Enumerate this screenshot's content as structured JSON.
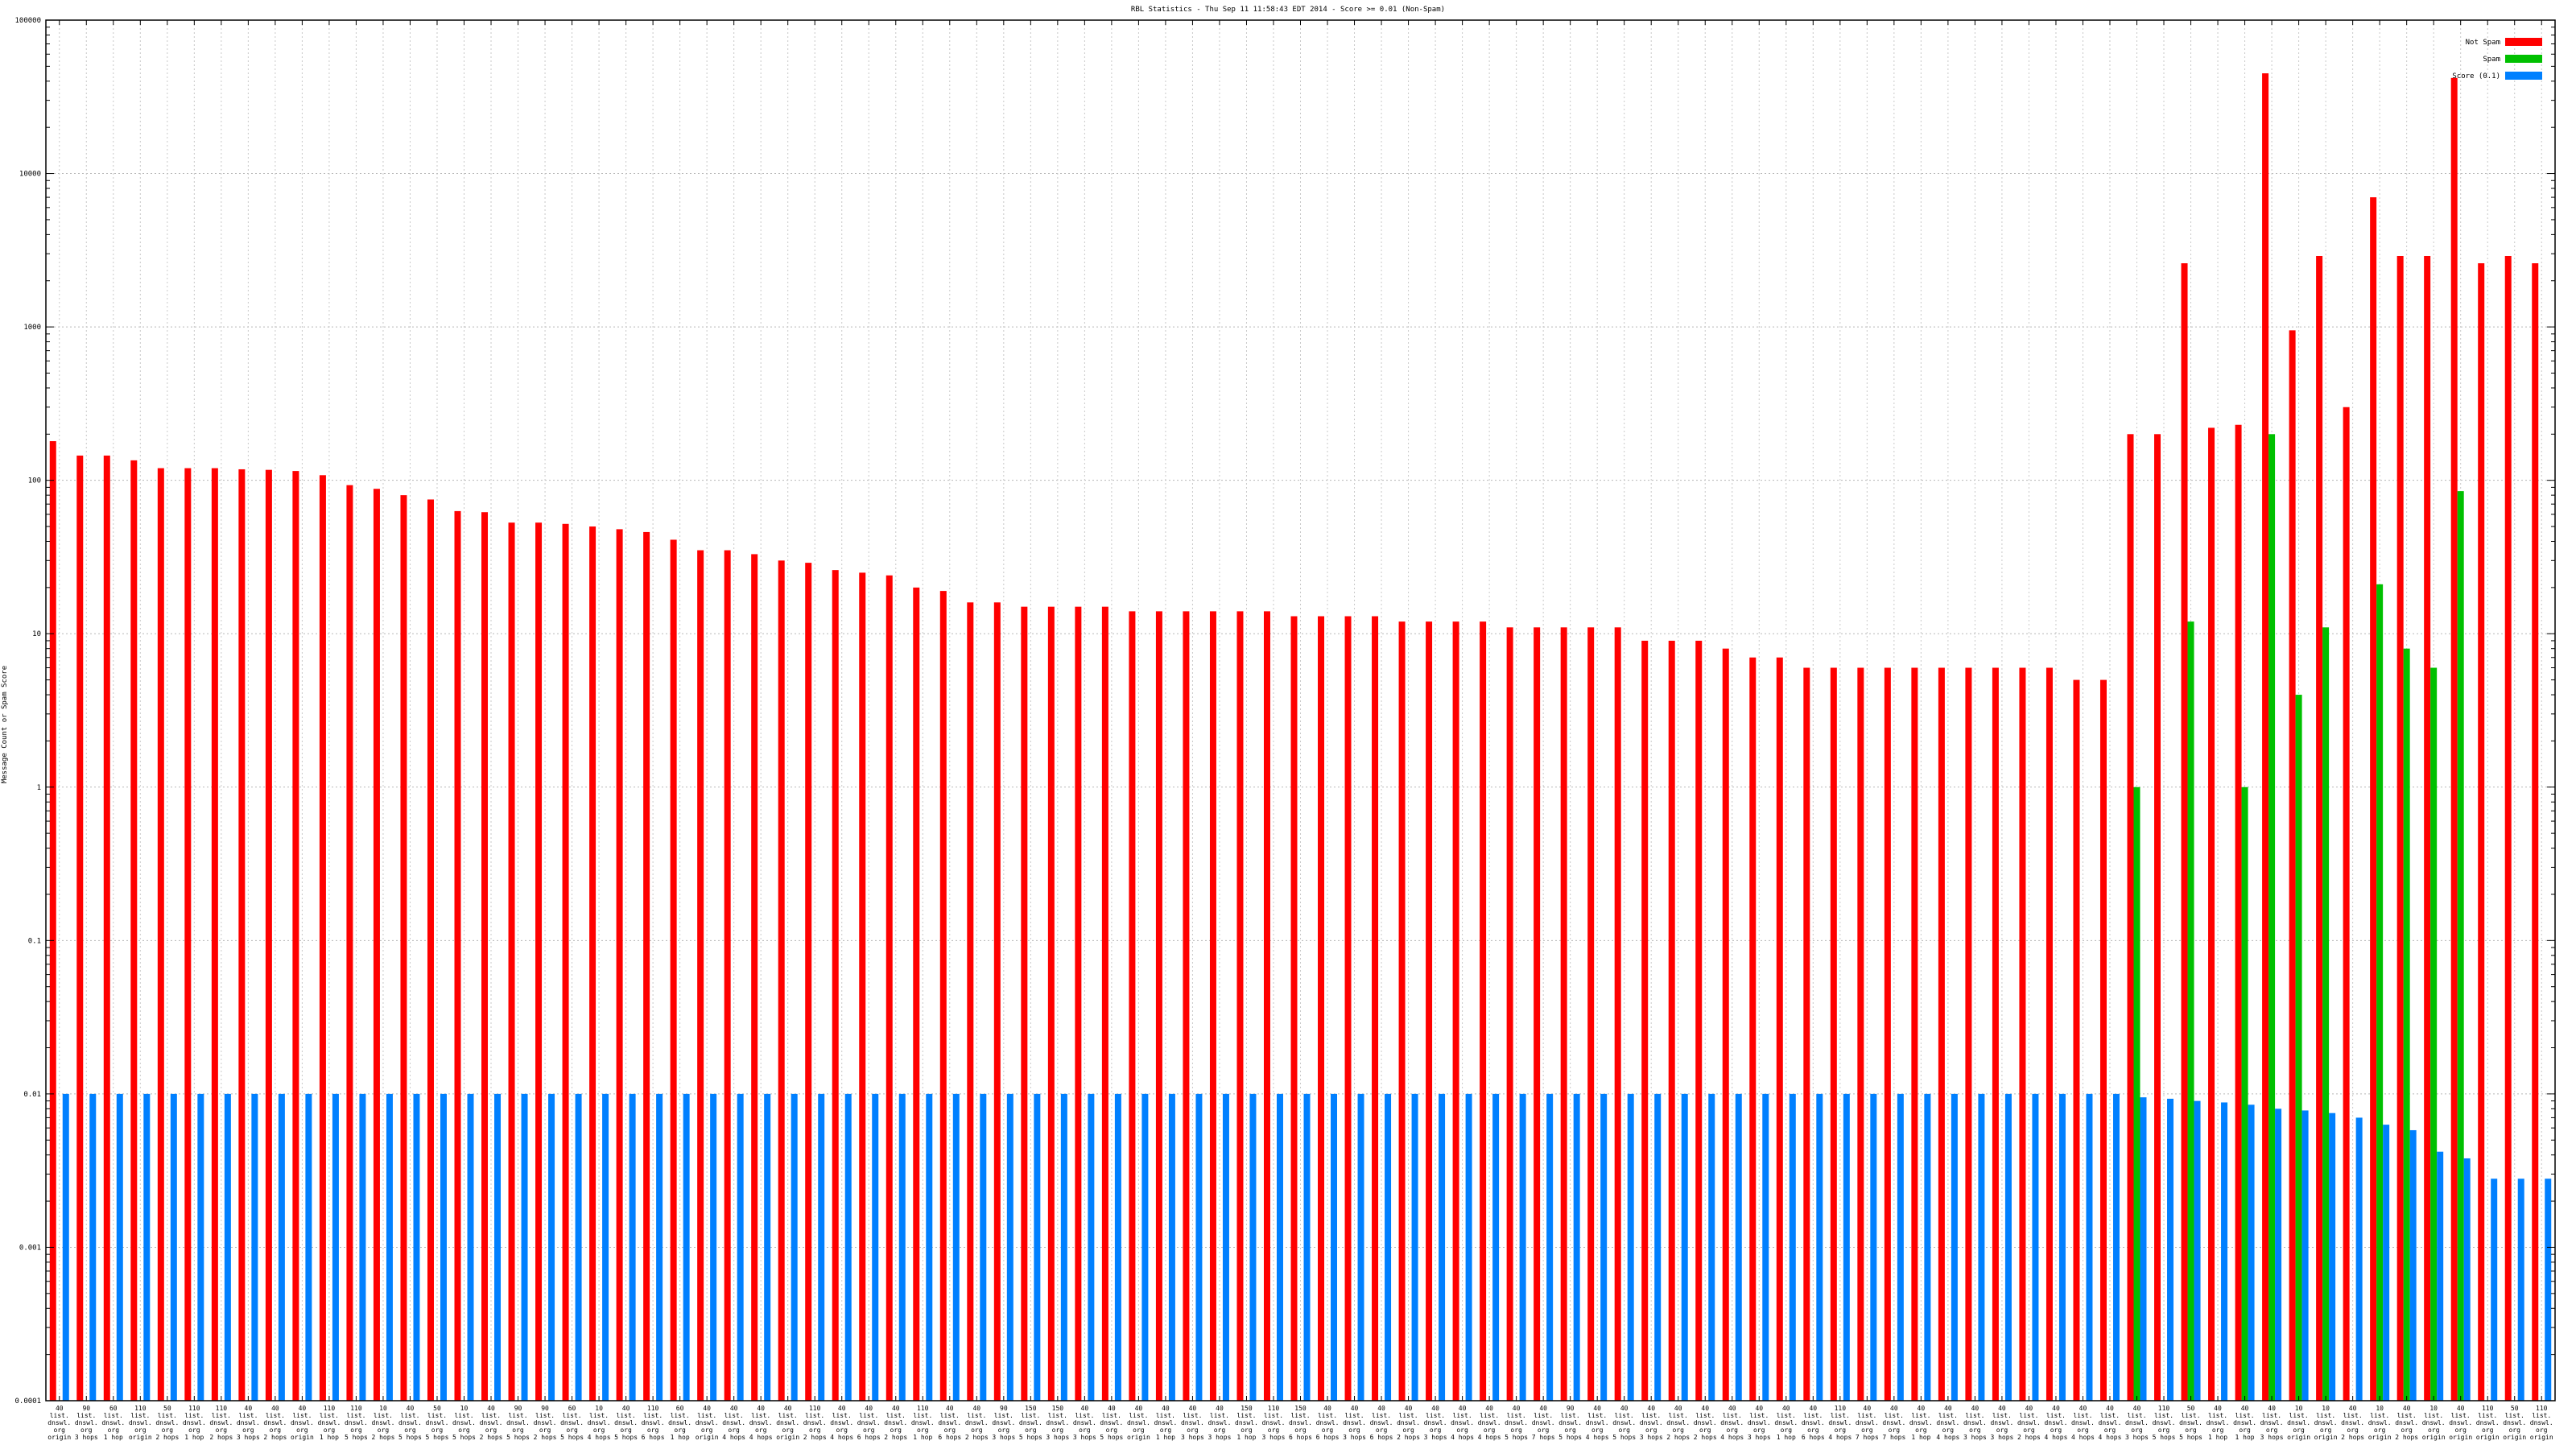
{
  "chart_data": {
    "type": "bar",
    "title": "RBL Statistics - Thu Sep 11 11:58:43 EDT 2014 - Score >= 0.01 (Non-Spam)",
    "ylabel": "Message Count or Spam Score",
    "yscale": "log",
    "ylim": [
      0.0001,
      100000
    ],
    "yticks": [
      "0.0001",
      "0.001",
      "0.01",
      "0.1",
      "1",
      "10",
      "100",
      "1000",
      "10000",
      "100000"
    ],
    "grid": true,
    "legend_position": "top-right",
    "series": [
      {
        "name": "Not Spam",
        "color": "#ff0000"
      },
      {
        "name": "Spam",
        "color": "#00c000"
      },
      {
        "name": "Score (0.1)",
        "color": "#0080ff"
      }
    ],
    "categories": [
      "c1",
      "c2",
      "c3",
      "c4",
      "c5",
      "c6",
      "c7",
      "c8",
      "c9",
      "c10",
      "c11",
      "c12",
      "c13",
      "c14",
      "c15",
      "c16",
      "c17",
      "c18",
      "c19",
      "c20",
      "c21",
      "c22",
      "c23",
      "c24",
      "c25",
      "c26",
      "c27",
      "c28",
      "c29",
      "c30",
      "c31",
      "c32",
      "c33",
      "c34",
      "c35",
      "c36",
      "c37",
      "c38",
      "c39",
      "c40",
      "c41",
      "c42",
      "c43",
      "c44",
      "c45",
      "c46",
      "c47",
      "c48",
      "c49",
      "c50",
      "c51",
      "c52",
      "c53",
      "c54",
      "c55",
      "c56",
      "c57",
      "c58",
      "c59",
      "c60",
      "c61",
      "c62",
      "c63",
      "c64",
      "c65",
      "c66",
      "c67",
      "c68",
      "c69",
      "c70",
      "c71",
      "c72",
      "c73",
      "c74",
      "c75",
      "c76",
      "c77",
      "c78",
      "c79",
      "c80",
      "c81",
      "c82",
      "c83",
      "c84",
      "c85",
      "c86",
      "c87",
      "c88",
      "c89",
      "c90",
      "c91",
      "c92",
      "c93"
    ],
    "category_labels": [
      [
        "40",
        "list.",
        "dnswl.",
        "org",
        "origin"
      ],
      [
        "90",
        "list.",
        "dnswl.",
        "org",
        "3 hops"
      ],
      [
        "60",
        "list.",
        "dnswl.",
        "org",
        "1 hop"
      ],
      [
        "110",
        "list.",
        "dnswl.",
        "org",
        "origin"
      ],
      [
        "50",
        "list.",
        "dnswl.",
        "org",
        "2 hops"
      ],
      [
        "110",
        "list.",
        "dnswl.",
        "org",
        "1 hop"
      ],
      [
        "110",
        "list.",
        "dnswl.",
        "org",
        "2 hops"
      ],
      [
        "40",
        "list.",
        "dnswl.",
        "org",
        "3 hops"
      ],
      [
        "40",
        "list.",
        "dnswl.",
        "org",
        "2 hops"
      ],
      [
        "40",
        "list.",
        "dnswl.",
        "org",
        "origin"
      ],
      [
        "110",
        "list.",
        "dnswl.",
        "org",
        "1 hop"
      ],
      [
        "110",
        "list.",
        "dnswl.",
        "org",
        "5 hops"
      ],
      [
        "10",
        "list.",
        "dnswl.",
        "org",
        "2 hops"
      ],
      [
        "40",
        "list.",
        "dnswl.",
        "org",
        "5 hops"
      ],
      [
        "50",
        "list.",
        "dnswl.",
        "org",
        "5 hops"
      ],
      [
        "10",
        "list.",
        "dnswl.",
        "org",
        "5 hops"
      ],
      [
        "40",
        "list.",
        "dnswl.",
        "org",
        "2 hops"
      ],
      [
        "90",
        "list.",
        "dnswl.",
        "org",
        "5 hops"
      ],
      [
        "90",
        "list.",
        "dnswl.",
        "org",
        "2 hops"
      ],
      [
        "60",
        "list.",
        "dnswl.",
        "org",
        "5 hops"
      ],
      [
        "10",
        "list.",
        "dnswl.",
        "org",
        "4 hops"
      ],
      [
        "40",
        "list.",
        "dnswl.",
        "org",
        "5 hops"
      ],
      [
        "110",
        "list.",
        "dnswl.",
        "org",
        "6 hops"
      ],
      [
        "60",
        "list.",
        "dnswl.",
        "org",
        "1 hop"
      ],
      [
        "40",
        "list.",
        "dnswl.",
        "org",
        "origin"
      ],
      [
        "40",
        "list.",
        "dnswl.",
        "org",
        "4 hops"
      ],
      [
        "40",
        "list.",
        "dnswl.",
        "org",
        "4 hops"
      ],
      [
        "40",
        "list.",
        "dnswl.",
        "org",
        "origin"
      ],
      [
        "110",
        "list.",
        "dnswl.",
        "org",
        "2 hops"
      ],
      [
        "40",
        "list.",
        "dnswl.",
        "org",
        "4 hops"
      ],
      [
        "40",
        "list.",
        "dnswl.",
        "org",
        "6 hops"
      ],
      [
        "40",
        "list.",
        "dnswl.",
        "org",
        "2 hops"
      ],
      [
        "110",
        "list.",
        "dnswl.",
        "org",
        "1 hop"
      ],
      [
        "40",
        "list.",
        "dnswl.",
        "org",
        "6 hops"
      ],
      [
        "40",
        "list.",
        "dnswl.",
        "org",
        "2 hops"
      ],
      [
        "90",
        "list.",
        "dnswl.",
        "org",
        "3 hops"
      ],
      [
        "150",
        "list.",
        "dnswl.",
        "org",
        "5 hops"
      ],
      [
        "150",
        "list.",
        "dnswl.",
        "org",
        "3 hops"
      ],
      [
        "40",
        "list.",
        "dnswl.",
        "org",
        "3 hops"
      ],
      [
        "40",
        "list.",
        "dnswl.",
        "org",
        "5 hops"
      ],
      [
        "40",
        "list.",
        "dnswl.",
        "org",
        "origin"
      ],
      [
        "40",
        "list.",
        "dnswl.",
        "org",
        "1 hop"
      ],
      [
        "40",
        "list.",
        "dnswl.",
        "org",
        "3 hops"
      ],
      [
        "40",
        "list.",
        "dnswl.",
        "org",
        "3 hops"
      ],
      [
        "150",
        "list.",
        "dnswl.",
        "org",
        "1 hop"
      ],
      [
        "110",
        "list.",
        "dnswl.",
        "org",
        "3 hops"
      ],
      [
        "150",
        "list.",
        "dnswl.",
        "org",
        "6 hops"
      ],
      [
        "40",
        "list.",
        "dnswl.",
        "org",
        "6 hops"
      ],
      [
        "40",
        "list.",
        "dnswl.",
        "org",
        "3 hops"
      ],
      [
        "40",
        "list.",
        "dnswl.",
        "org",
        "6 hops"
      ],
      [
        "40",
        "list.",
        "dnswl.",
        "org",
        "2 hops"
      ],
      [
        "40",
        "list.",
        "dnswl.",
        "org",
        "3 hops"
      ],
      [
        "40",
        "list.",
        "dnswl.",
        "org",
        "4 hops"
      ],
      [
        "40",
        "list.",
        "dnswl.",
        "org",
        "4 hops"
      ],
      [
        "40",
        "list.",
        "dnswl.",
        "org",
        "5 hops"
      ],
      [
        "40",
        "list.",
        "dnswl.",
        "org",
        "7 hops"
      ],
      [
        "90",
        "list.",
        "dnswl.",
        "org",
        "5 hops"
      ],
      [
        "40",
        "list.",
        "dnswl.",
        "org",
        "4 hops"
      ],
      [
        "40",
        "list.",
        "dnswl.",
        "org",
        "5 hops"
      ],
      [
        "40",
        "list.",
        "dnswl.",
        "org",
        "3 hops"
      ],
      [
        "40",
        "list.",
        "dnswl.",
        "org",
        "2 hops"
      ],
      [
        "40",
        "list.",
        "dnswl.",
        "org",
        "2 hops"
      ],
      [
        "40",
        "list.",
        "dnswl.",
        "org",
        "4 hops"
      ],
      [
        "40",
        "list.",
        "dnswl.",
        "org",
        "3 hops"
      ],
      [
        "40",
        "list.",
        "dnswl.",
        "org",
        "1 hop"
      ],
      [
        "40",
        "list.",
        "dnswl.",
        "org",
        "6 hops"
      ],
      [
        "110",
        "list.",
        "dnswl.",
        "org",
        "4 hops"
      ],
      [
        "40",
        "list.",
        "dnswl.",
        "org",
        "7 hops"
      ],
      [
        "40",
        "list.",
        "dnswl.",
        "org",
        "7 hops"
      ],
      [
        "40",
        "list.",
        "dnswl.",
        "org",
        "1 hop"
      ],
      [
        "40",
        "list.",
        "dnswl.",
        "org",
        "4 hops"
      ],
      [
        "40",
        "list.",
        "dnswl.",
        "org",
        "3 hops"
      ],
      [
        "40",
        "list.",
        "dnswl.",
        "org",
        "3 hops"
      ],
      [
        "40",
        "list.",
        "dnswl.",
        "org",
        "2 hops"
      ],
      [
        "40",
        "list.",
        "dnswl.",
        "org",
        "4 hops"
      ],
      [
        "40",
        "list.",
        "dnswl.",
        "org",
        "4 hops"
      ],
      [
        "40",
        "list.",
        "dnswl.",
        "org",
        "4 hops"
      ],
      [
        "40",
        "list.",
        "dnswl.",
        "org",
        "3 hops"
      ],
      [
        "110",
        "list.",
        "dnswl.",
        "org",
        "5 hops"
      ],
      [
        "50",
        "list.",
        "dnswl.",
        "org",
        "5 hops"
      ],
      [
        "40",
        "list.",
        "dnswl.",
        "org",
        "1 hop"
      ],
      [
        "40",
        "list.",
        "dnswl.",
        "org",
        "1 hop"
      ],
      [
        "40",
        "list.",
        "dnswl.",
        "org",
        "3 hops"
      ],
      [
        "10",
        "list.",
        "dnswl.",
        "org",
        "origin"
      ],
      [
        "10",
        "list.",
        "dnswl.",
        "org",
        "origin"
      ],
      [
        "40",
        "list.",
        "dnswl.",
        "org",
        "2 hops"
      ],
      [
        "10",
        "list.",
        "dnswl.",
        "org",
        "origin"
      ],
      [
        "40",
        "list.",
        "dnswl.",
        "org",
        "2 hops"
      ],
      [
        "10",
        "list.",
        "dnswl.",
        "org",
        "origin"
      ],
      [
        "40",
        "list.",
        "dnswl.",
        "org",
        "origin"
      ],
      [
        "110",
        "list.",
        "dnswl.",
        "org",
        "origin"
      ],
      [
        "50",
        "list.",
        "dnswl.",
        "org",
        "origin"
      ],
      [
        "110",
        "list.",
        "dnswl.",
        "org",
        "origin"
      ]
    ],
    "not_spam": [
      180,
      145,
      145,
      135,
      120,
      120,
      120,
      118,
      117,
      115,
      108,
      93,
      88,
      80,
      75,
      63,
      62,
      53,
      53,
      52,
      50,
      48,
      46,
      41,
      35,
      35,
      33,
      30,
      29,
      26,
      25,
      24,
      20,
      19,
      16,
      16,
      15,
      15,
      15,
      15,
      14,
      14,
      14,
      14,
      14,
      14,
      13,
      13,
      13,
      13,
      12,
      12,
      12,
      12,
      11,
      11,
      11,
      11,
      11,
      9,
      9,
      9,
      8,
      7,
      7,
      6,
      6,
      6,
      6,
      6,
      6,
      6,
      6,
      6,
      6,
      5,
      5,
      200,
      200,
      2600,
      220,
      230,
      45000,
      950,
      2900,
      300,
      7000,
      2900,
      2900,
      42000,
      2600,
      2900,
      2600
    ],
    "spam": [
      null,
      null,
      null,
      null,
      null,
      null,
      null,
      null,
      null,
      null,
      null,
      null,
      null,
      null,
      null,
      null,
      null,
      null,
      null,
      null,
      null,
      null,
      null,
      null,
      null,
      null,
      null,
      null,
      null,
      null,
      null,
      null,
      null,
      null,
      null,
      null,
      null,
      null,
      null,
      null,
      null,
      null,
      null,
      null,
      null,
      null,
      null,
      null,
      null,
      null,
      null,
      null,
      null,
      null,
      null,
      null,
      null,
      null,
      null,
      null,
      null,
      null,
      null,
      null,
      null,
      null,
      null,
      null,
      null,
      null,
      null,
      null,
      null,
      null,
      null,
      null,
      null,
      1,
      null,
      12,
      null,
      1,
      200,
      4,
      11,
      null,
      21,
      8,
      6,
      85,
      null,
      null,
      null
    ],
    "score": [
      0.01,
      0.01,
      0.01,
      0.01,
      0.01,
      0.01,
      0.01,
      0.01,
      0.01,
      0.01,
      0.01,
      0.01,
      0.01,
      0.01,
      0.01,
      0.01,
      0.01,
      0.01,
      0.01,
      0.01,
      0.01,
      0.01,
      0.01,
      0.01,
      0.01,
      0.01,
      0.01,
      0.01,
      0.01,
      0.01,
      0.01,
      0.01,
      0.01,
      0.01,
      0.01,
      0.01,
      0.01,
      0.01,
      0.01,
      0.01,
      0.01,
      0.01,
      0.01,
      0.01,
      0.01,
      0.01,
      0.01,
      0.01,
      0.01,
      0.01,
      0.01,
      0.01,
      0.01,
      0.01,
      0.01,
      0.01,
      0.01,
      0.01,
      0.01,
      0.01,
      0.01,
      0.01,
      0.01,
      0.01,
      0.01,
      0.01,
      0.01,
      0.01,
      0.01,
      0.01,
      0.01,
      0.01,
      0.01,
      0.01,
      0.01,
      0.01,
      0.01,
      0.0095,
      0.0093,
      0.009,
      0.0088,
      0.0085,
      0.008,
      0.0078,
      0.0075,
      0.007,
      0.0063,
      0.0058,
      0.0042,
      0.0038,
      0.0028,
      0.0028,
      0.0028
    ]
  }
}
